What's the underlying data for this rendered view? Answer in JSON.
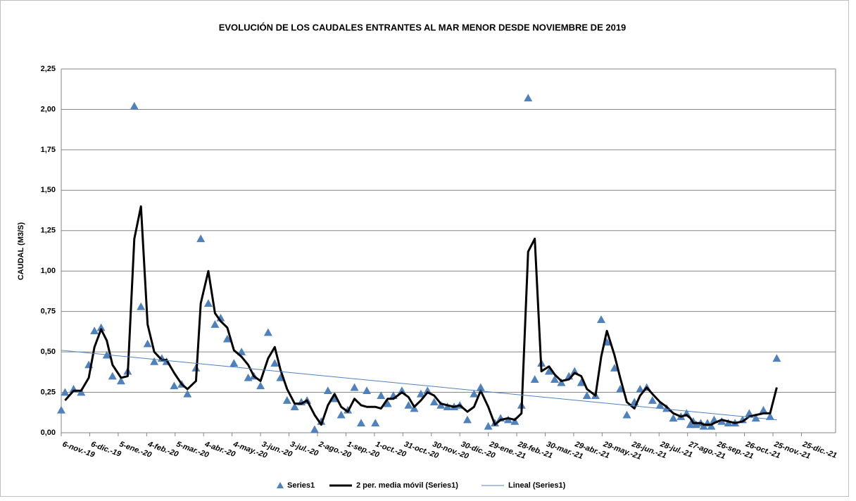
{
  "chart_data": {
    "type": "scatter",
    "title": "EVOLUCIÓN DE LOS CAUDALES ENTRANTES AL MAR MENOR DESDE NOVIEMBRE DE 2019",
    "y_label": "CAUDAL (M3/S)",
    "xlim": [
      0,
      816
    ],
    "xticks": [
      {
        "value": 0,
        "label": "6-nov.-19"
      },
      {
        "value": 30,
        "label": "6-dic.-19"
      },
      {
        "value": 60,
        "label": "5-ene.-20"
      },
      {
        "value": 90,
        "label": "4-feb.-20"
      },
      {
        "value": 120,
        "label": "5-mar.-20"
      },
      {
        "value": 150,
        "label": "4-abr.-20"
      },
      {
        "value": 180,
        "label": "4-may.-20"
      },
      {
        "value": 210,
        "label": "3-jun.-20"
      },
      {
        "value": 240,
        "label": "3-jul.-20"
      },
      {
        "value": 270,
        "label": "2-ago.-20"
      },
      {
        "value": 300,
        "label": "1-sep.-20"
      },
      {
        "value": 330,
        "label": "1-oct.-20"
      },
      {
        "value": 360,
        "label": "31-oct.-20"
      },
      {
        "value": 390,
        "label": "30-nov.-20"
      },
      {
        "value": 420,
        "label": "30-dic.-20"
      },
      {
        "value": 450,
        "label": "29-ene.-21"
      },
      {
        "value": 480,
        "label": "28-feb.-21"
      },
      {
        "value": 510,
        "label": "30-mar.-21"
      },
      {
        "value": 540,
        "label": "29-abr.-21"
      },
      {
        "value": 570,
        "label": "29-may.-21"
      },
      {
        "value": 600,
        "label": "28-jun.-21"
      },
      {
        "value": 630,
        "label": "28-jul.-21"
      },
      {
        "value": 660,
        "label": "27-ago.-21"
      },
      {
        "value": 690,
        "label": "26-sep.-21"
      },
      {
        "value": 720,
        "label": "26-oct.-21"
      },
      {
        "value": 750,
        "label": "25-nov.-21"
      },
      {
        "value": 780,
        "label": "25-dic.-21"
      }
    ],
    "ylim": [
      0,
      2.25
    ],
    "yticks": [
      {
        "value": 0,
        "label": "0,00"
      },
      {
        "value": 0.25,
        "label": "0,25"
      },
      {
        "value": 0.5,
        "label": "0,50"
      },
      {
        "value": 0.75,
        "label": "0,75"
      },
      {
        "value": 1,
        "label": "1,00"
      },
      {
        "value": 1.25,
        "label": "1,25"
      },
      {
        "value": 1.5,
        "label": "1,50"
      },
      {
        "value": 1.75,
        "label": "1,75"
      },
      {
        "value": 2,
        "label": "2,00"
      },
      {
        "value": 2.25,
        "label": "2,25"
      }
    ],
    "grid": true,
    "legend": "bottom",
    "x": [
      0,
      4,
      13,
      21,
      29,
      35,
      42,
      48,
      54,
      63,
      70,
      77,
      84,
      91,
      98,
      106,
      111,
      119,
      127,
      133,
      142,
      147,
      155,
      162,
      168,
      175,
      182,
      190,
      197,
      203,
      210,
      218,
      225,
      231,
      238,
      246,
      253,
      259,
      267,
      274,
      281,
      288,
      295,
      302,
      309,
      316,
      322,
      331,
      337,
      344,
      350,
      359,
      366,
      372,
      379,
      386,
      393,
      400,
      407,
      414,
      420,
      428,
      435,
      442,
      450,
      457,
      463,
      471,
      478,
      485,
      492,
      499,
      506,
      514,
      520,
      527,
      535,
      541,
      548,
      554,
      563,
      569,
      575,
      583,
      589,
      596,
      604,
      610,
      617,
      623,
      631,
      638,
      645,
      653,
      659,
      663,
      666,
      669,
      674,
      677,
      681,
      685,
      688,
      696,
      703,
      710,
      718,
      725,
      732,
      740,
      747,
      754
    ],
    "series": [
      {
        "name": "Series1",
        "type": "scatter",
        "color": "#4f81bd",
        "values": [
          0.14,
          0.25,
          0.27,
          0.25,
          0.42,
          0.63,
          0.65,
          0.48,
          0.35,
          0.32,
          0.38,
          2.02,
          0.78,
          0.55,
          0.44,
          0.46,
          0.44,
          0.29,
          0.3,
          0.24,
          0.4,
          1.2,
          0.8,
          0.67,
          0.71,
          0.58,
          0.43,
          0.5,
          0.34,
          0.35,
          0.29,
          0.62,
          0.43,
          0.34,
          0.2,
          0.16,
          0.19,
          0.2,
          0.02,
          0.07,
          0.26,
          0.21,
          0.11,
          0.14,
          0.28,
          0.06,
          0.26,
          0.06,
          0.23,
          0.18,
          0.23,
          0.26,
          0.17,
          0.15,
          0.24,
          0.26,
          0.19,
          0.17,
          0.16,
          0.16,
          0.17,
          0.08,
          0.24,
          0.28,
          0.04,
          0.06,
          0.09,
          0.08,
          0.07,
          0.17,
          2.07,
          0.33,
          0.43,
          0.38,
          0.33,
          0.31,
          0.35,
          0.38,
          0.31,
          0.23,
          0.23,
          0.7,
          0.56,
          0.4,
          0.27,
          0.11,
          0.19,
          0.27,
          0.28,
          0.2,
          0.17,
          0.15,
          0.09,
          0.1,
          0.12,
          0.05,
          0.07,
          0.05,
          0.06,
          0.04,
          0.06,
          0.04,
          0.08,
          0.07,
          0.06,
          0.06,
          0.08,
          0.12,
          0.09,
          0.14,
          0.1,
          0.46
        ]
      },
      {
        "name": "2 per. media móvil (Series1)",
        "type": "line",
        "color": "#000000",
        "values": [
          null,
          0.2,
          0.26,
          0.26,
          0.34,
          0.53,
          0.64,
          0.57,
          0.42,
          0.34,
          0.35,
          1.2,
          1.4,
          0.67,
          0.5,
          0.45,
          0.45,
          0.37,
          0.3,
          0.27,
          0.32,
          0.8,
          1.0,
          0.74,
          0.69,
          0.65,
          0.51,
          0.47,
          0.42,
          0.35,
          0.32,
          0.46,
          0.53,
          0.39,
          0.27,
          0.18,
          0.18,
          0.2,
          0.11,
          0.05,
          0.17,
          0.24,
          0.16,
          0.13,
          0.21,
          0.17,
          0.16,
          0.16,
          0.15,
          0.21,
          0.21,
          0.25,
          0.22,
          0.16,
          0.2,
          0.25,
          0.23,
          0.18,
          0.17,
          0.16,
          0.17,
          0.13,
          0.16,
          0.26,
          0.16,
          0.05,
          0.08,
          0.09,
          0.08,
          0.12,
          1.12,
          1.2,
          0.38,
          0.41,
          0.36,
          0.32,
          0.33,
          0.37,
          0.35,
          0.27,
          0.23,
          0.47,
          0.63,
          0.48,
          0.34,
          0.19,
          0.15,
          0.23,
          0.28,
          0.24,
          0.19,
          0.16,
          0.12,
          0.1,
          0.11,
          0.09,
          0.06,
          0.06,
          0.06,
          0.05,
          0.05,
          0.05,
          0.06,
          0.08,
          0.07,
          0.06,
          0.07,
          0.1,
          0.11,
          0.12,
          0.12,
          0.28
        ]
      },
      {
        "name": "Lineal (Series1)",
        "type": "line",
        "color": "#4f81bd",
        "x": [
          0,
          754
        ],
        "values": [
          0.51,
          0.08
        ]
      }
    ]
  }
}
